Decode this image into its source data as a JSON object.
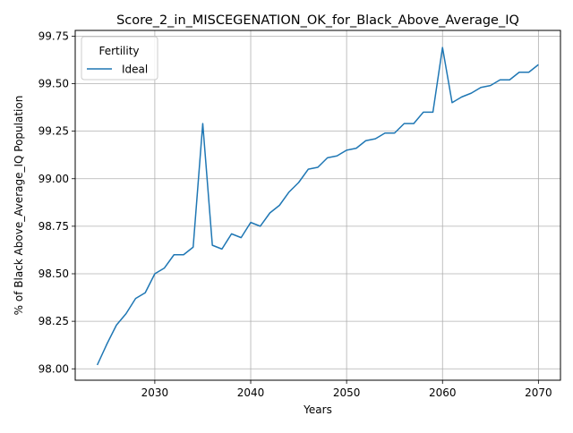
{
  "chart_data": {
    "type": "line",
    "title": "Score_2_in_MISCEGENATION_OK_for_Black_Above_Average_IQ",
    "xlabel": "Years",
    "ylabel": "% of Black Above_Average_IQ Population",
    "xlim": [
      2021.7,
      2072.3
    ],
    "ylim": [
      97.94,
      99.78
    ],
    "xticks": [
      2030,
      2040,
      2050,
      2060,
      2070
    ],
    "yticks": [
      98.0,
      98.25,
      98.5,
      98.75,
      99.0,
      99.25,
      99.5,
      99.75
    ],
    "xtick_labels": [
      "2030",
      "2040",
      "2050",
      "2060",
      "2070"
    ],
    "ytick_labels": [
      "98.00",
      "98.25",
      "98.50",
      "98.75",
      "99.00",
      "99.25",
      "99.50",
      "99.75"
    ],
    "grid": true,
    "legend": {
      "title": "Fertility",
      "position": "upper-left"
    },
    "series": [
      {
        "name": "Ideal",
        "color": "#1f77b4",
        "x": [
          2024,
          2025,
          2026,
          2027,
          2028,
          2029,
          2030,
          2031,
          2032,
          2033,
          2034,
          2035,
          2036,
          2037,
          2038,
          2039,
          2040,
          2041,
          2042,
          2043,
          2044,
          2045,
          2046,
          2047,
          2048,
          2049,
          2050,
          2051,
          2052,
          2053,
          2054,
          2055,
          2056,
          2057,
          2058,
          2059,
          2060,
          2061,
          2062,
          2063,
          2064,
          2065,
          2066,
          2067,
          2068,
          2069,
          2070
        ],
        "y": [
          98.02,
          98.13,
          98.23,
          98.29,
          98.37,
          98.4,
          98.5,
          98.53,
          98.6,
          98.6,
          98.64,
          99.29,
          98.65,
          98.63,
          98.71,
          98.69,
          98.77,
          98.75,
          98.82,
          98.86,
          98.93,
          98.98,
          99.05,
          99.06,
          99.11,
          99.12,
          99.15,
          99.16,
          99.2,
          99.21,
          99.24,
          99.24,
          99.29,
          99.29,
          99.35,
          99.35,
          99.69,
          99.4,
          99.43,
          99.45,
          99.48,
          99.49,
          99.52,
          99.52,
          99.56,
          99.56,
          99.6
        ]
      }
    ]
  }
}
